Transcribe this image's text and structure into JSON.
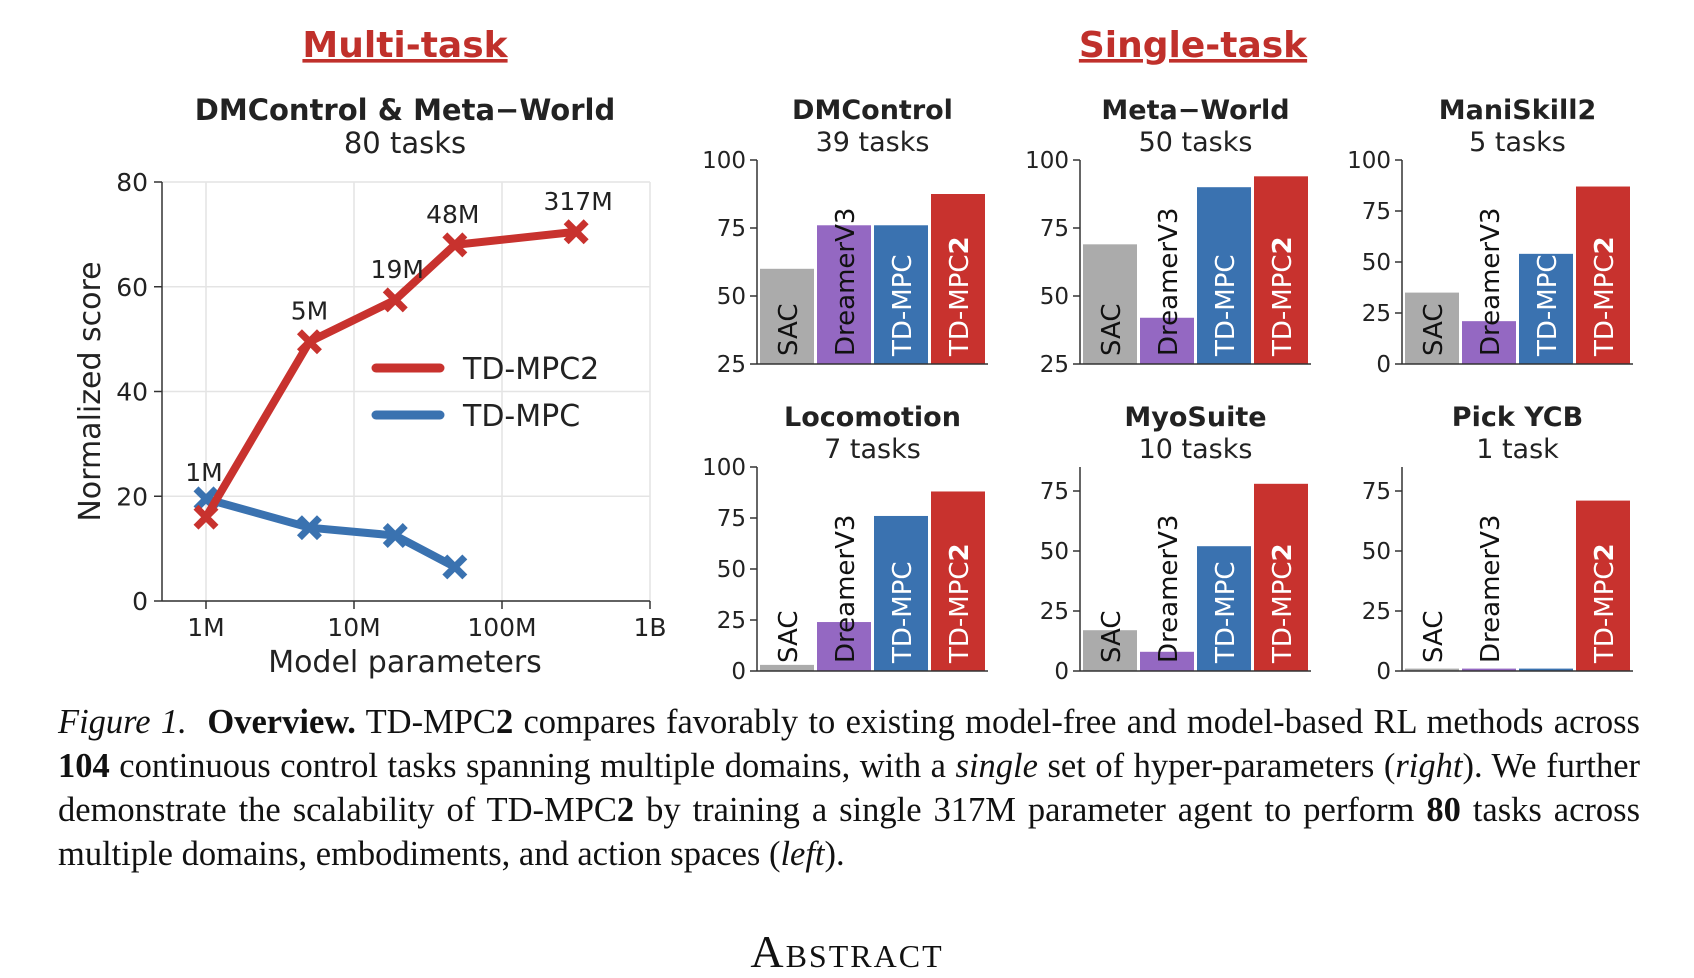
{
  "section_titles": {
    "multi": "Multi-task",
    "single": "Single-task"
  },
  "colors": {
    "tdmpc2": "#c8322e",
    "tdmpc": "#3a72b0",
    "sac": "#ababab",
    "dreamer": "#9468c2",
    "heading": "#c0302b"
  },
  "chart_data": [
    {
      "type": "line",
      "title": "DMControl & Meta−World",
      "subtitle": "80 tasks",
      "xlabel": "Model parameters",
      "ylabel": "Normalized score",
      "xscale": "log",
      "xlim": [
        1,
        1000
      ],
      "ylim": [
        0,
        80
      ],
      "xticks": [
        1,
        10,
        100,
        1000
      ],
      "xtick_labels": [
        "1M",
        "10M",
        "100M",
        "1B"
      ],
      "yticks": [
        0,
        20,
        40,
        60,
        80
      ],
      "ytick_labels": [
        "0",
        "20",
        "40",
        "60",
        "80"
      ],
      "grid": true,
      "legend": "center-right",
      "series": [
        {
          "name": "TD-MPC2",
          "x": [
            1,
            5,
            19,
            48,
            317
          ],
          "y": [
            16,
            49.5,
            57.5,
            68,
            70.5
          ]
        },
        {
          "name": "TD-MPC",
          "x": [
            1,
            5,
            19,
            48
          ],
          "y": [
            19.5,
            14,
            12.5,
            6.5
          ]
        }
      ],
      "annotations": [
        "1M",
        "5M",
        "19M",
        "48M",
        "317M"
      ]
    },
    {
      "type": "bar",
      "title": "DMControl",
      "subtitle": "39 tasks",
      "categories": [
        "SAC",
        "DreamerV3",
        "TD-MPC",
        "TD-MPC2"
      ],
      "values": [
        60,
        76,
        76,
        87.5
      ],
      "ylim": [
        25,
        100
      ],
      "yticks": [
        25,
        50,
        75,
        100
      ],
      "ytick_labels": [
        "25",
        "50",
        "75",
        "100"
      ]
    },
    {
      "type": "bar",
      "title": "Meta−World",
      "subtitle": "50 tasks",
      "categories": [
        "SAC",
        "DreamerV3",
        "TD-MPC",
        "TD-MPC2"
      ],
      "values": [
        69,
        42,
        90,
        94
      ],
      "ylim": [
        25,
        100
      ],
      "yticks": [
        25,
        50,
        75,
        100
      ],
      "ytick_labels": [
        "25",
        "50",
        "75",
        "100"
      ]
    },
    {
      "type": "bar",
      "title": "ManiSkill2",
      "subtitle": "5 tasks",
      "categories": [
        "SAC",
        "DreamerV3",
        "TD-MPC",
        "TD-MPC2"
      ],
      "values": [
        35,
        21,
        54,
        87
      ],
      "ylim": [
        0,
        100
      ],
      "yticks": [
        0,
        25,
        50,
        75,
        100
      ],
      "ytick_labels": [
        "0",
        "25",
        "50",
        "75",
        "100"
      ]
    },
    {
      "type": "bar",
      "title": "Locomotion",
      "subtitle": "7 tasks",
      "categories": [
        "SAC",
        "DreamerV3",
        "TD-MPC",
        "TD-MPC2"
      ],
      "values": [
        3,
        24,
        76,
        88
      ],
      "ylim": [
        0,
        100
      ],
      "yticks": [
        0,
        25,
        50,
        75,
        100
      ],
      "ytick_labels": [
        "0",
        "25",
        "50",
        "75",
        "100"
      ]
    },
    {
      "type": "bar",
      "title": "MyoSuite",
      "subtitle": "10 tasks",
      "categories": [
        "SAC",
        "DreamerV3",
        "TD-MPC",
        "TD-MPC2"
      ],
      "values": [
        17,
        8,
        52,
        78
      ],
      "ylim": [
        0,
        85
      ],
      "yticks": [
        0,
        25,
        50,
        75
      ],
      "ytick_labels": [
        "0",
        "25",
        "50",
        "75"
      ]
    },
    {
      "type": "bar",
      "title": "Pick YCB",
      "subtitle": "1 task",
      "categories": [
        "SAC",
        "DreamerV3",
        "TD-MPC",
        "TD-MPC2"
      ],
      "values": [
        1,
        1,
        1,
        71
      ],
      "ylim": [
        0,
        85
      ],
      "yticks": [
        0,
        25,
        50,
        75
      ],
      "ytick_labels": [
        "0",
        "25",
        "50",
        "75"
      ]
    }
  ],
  "caption": {
    "label": "Figure 1.",
    "bold_lead": "Overview.",
    "t1": " TD-MPC",
    "b1": "2",
    "t2": " compares favorably to existing model-free and model-based RL methods across ",
    "b2": "104",
    "t3": " continuous control tasks spanning multiple domains, with a ",
    "i1": "single",
    "t4": " set of hyper-parameters (",
    "i2": "right",
    "t5": "). We further demonstrate the scalability of TD-MPC",
    "b3": "2",
    "t6": " by training a single 317M parameter agent to perform ",
    "b4": "80",
    "t7": " tasks across multiple domains, embodiments, and action spaces (",
    "i3": "left",
    "t8": ")."
  },
  "abstract_heading": "Abstract"
}
